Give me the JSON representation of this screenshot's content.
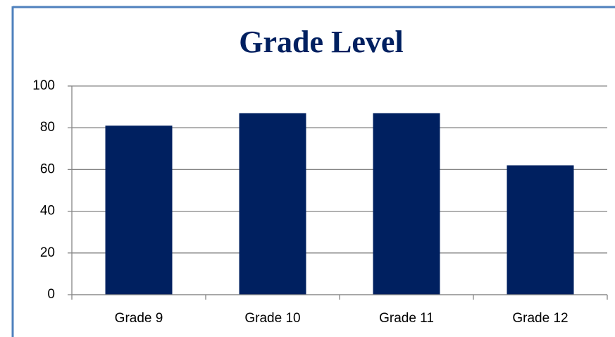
{
  "chart_data": {
    "type": "bar",
    "title": "Grade Level",
    "categories": [
      "Grade 9",
      "Grade 10",
      "Grade 11",
      "Grade 12"
    ],
    "values": [
      81,
      87,
      87,
      62
    ],
    "color": "#002060",
    "ylim": [
      0,
      100
    ],
    "yticks": [
      0,
      20,
      40,
      60,
      80,
      100
    ],
    "grid": true
  }
}
